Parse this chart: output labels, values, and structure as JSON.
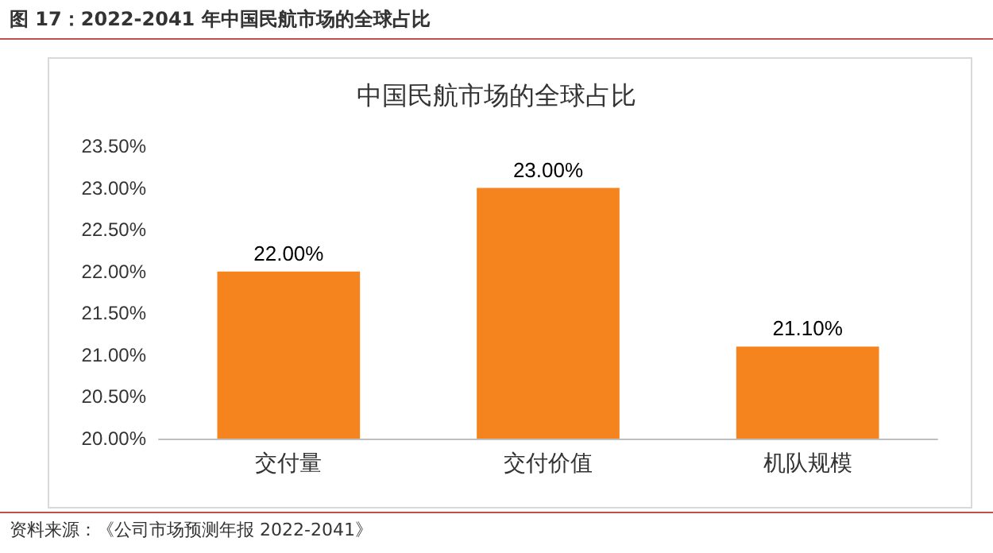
{
  "chart_data": {
    "type": "bar",
    "title": "图 17：2022-2041 年中国民航市场的全球占比",
    "subtitle": "中国民航市场的全球占比",
    "categories": [
      "交付量",
      "交付价值",
      "机队规模"
    ],
    "values": [
      22.0,
      23.0,
      21.1
    ],
    "value_labels": [
      "22.00%",
      "23.00%",
      "21.10%"
    ],
    "color": "#f5841f",
    "ylim": [
      20,
      23.5
    ],
    "yticks": [
      {
        "value": 20,
        "label": "20.00%"
      },
      {
        "value": 20.5,
        "label": "20.50%"
      },
      {
        "value": 21,
        "label": "21.00%"
      },
      {
        "value": 21.5,
        "label": "21.50%"
      },
      {
        "value": 22,
        "label": "22.00%"
      },
      {
        "value": 22.5,
        "label": "22.50%"
      },
      {
        "value": 23,
        "label": "23.00%"
      },
      {
        "value": 23.5,
        "label": "23.50%"
      }
    ],
    "grid": false,
    "annotations": [
      "资料来源：《公司市场预测年报 2022-2041》"
    ]
  }
}
